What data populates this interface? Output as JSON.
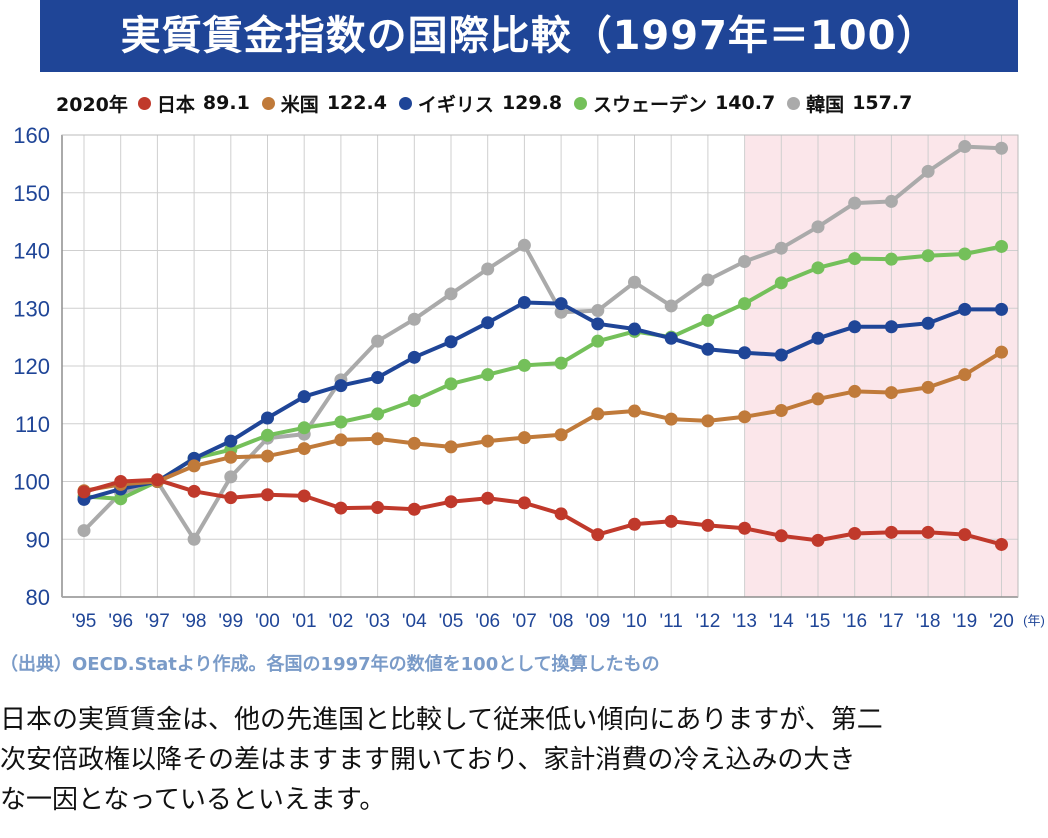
{
  "title": "実質賃金指数の国際比較（1997年＝100）",
  "legend": {
    "year": "2020年",
    "items": [
      {
        "name": "日本",
        "value": "89.1",
        "color": "#c0392b"
      },
      {
        "name": "米国",
        "value": "122.4",
        "color": "#c07a3a"
      },
      {
        "name": "イギリス",
        "value": "129.8",
        "color": "#1f4597"
      },
      {
        "name": "スウェーデン",
        "value": "140.7",
        "color": "#74c05a"
      },
      {
        "name": "韓国",
        "value": "157.7",
        "color": "#aaaaaa"
      }
    ]
  },
  "source": "（出典）OECD.Statより作成。各国の1997年の数値を100として換算したもの",
  "comment": [
    "日本の実質賃金は、他の先進国と比較して従来低い傾向にありますが、第二",
    "次安倍政権以降その差はますます開いており、家計消費の冷え込みの大き",
    "な一因となっているといえます。"
  ],
  "chart_data": {
    "type": "line",
    "title": "実質賃金指数の国際比較（1997年＝100）",
    "x_unit": "(年)",
    "categories": [
      "'95",
      "'96",
      "'97",
      "'98",
      "'99",
      "'00",
      "'01",
      "'02",
      "'03",
      "'04",
      "'05",
      "'06",
      "'07",
      "'08",
      "'09",
      "'10",
      "'11",
      "'12",
      "'13",
      "'14",
      "'15",
      "'16",
      "'17",
      "'18",
      "'19",
      "'20"
    ],
    "ylim": [
      80,
      160
    ],
    "yticks": [
      80,
      90,
      100,
      110,
      120,
      130,
      140,
      150,
      160
    ],
    "highlight_range": [
      "'13",
      "'20"
    ],
    "highlight_color": "#fbe6ea",
    "series": [
      {
        "name": "韓国",
        "color": "#aaaaaa",
        "values": [
          91.5,
          98.0,
          100.0,
          90.0,
          100.8,
          107.5,
          108.2,
          117.6,
          124.3,
          128.1,
          132.5,
          136.8,
          140.9,
          129.3,
          129.6,
          134.5,
          130.4,
          134.9,
          138.1,
          140.4,
          144.1,
          148.2,
          148.5,
          153.7,
          158.0,
          157.7
        ]
      },
      {
        "name": "スウェーデン",
        "color": "#74c05a",
        "values": [
          97.4,
          97.0,
          100.0,
          104.0,
          105.5,
          108.0,
          109.3,
          110.3,
          111.7,
          114.0,
          116.9,
          118.5,
          120.1,
          120.5,
          124.3,
          126.0,
          125.0,
          127.9,
          130.8,
          134.4,
          137.0,
          138.6,
          138.5,
          139.1,
          139.4,
          140.7
        ]
      },
      {
        "name": "イギリス",
        "color": "#1f4597",
        "values": [
          96.9,
          98.7,
          100.0,
          104.0,
          107.0,
          111.0,
          114.7,
          116.6,
          118.0,
          121.5,
          124.2,
          127.5,
          131.0,
          130.8,
          127.3,
          126.4,
          124.8,
          122.9,
          122.3,
          121.9,
          124.8,
          126.8,
          126.8,
          127.4,
          129.8,
          129.8
        ]
      },
      {
        "name": "米国",
        "color": "#c07a3a",
        "values": [
          98.4,
          99.5,
          100.0,
          102.7,
          104.2,
          104.4,
          105.7,
          107.2,
          107.4,
          106.6,
          106.0,
          107.0,
          107.6,
          108.1,
          111.7,
          112.2,
          110.8,
          110.5,
          111.2,
          112.3,
          114.3,
          115.6,
          115.4,
          116.3,
          118.5,
          122.4
        ]
      },
      {
        "name": "日本",
        "color": "#c0392b",
        "values": [
          98.2,
          100.0,
          100.3,
          98.3,
          97.2,
          97.7,
          97.5,
          95.4,
          95.5,
          95.2,
          96.5,
          97.1,
          96.3,
          94.4,
          90.8,
          92.6,
          93.1,
          92.4,
          91.9,
          90.6,
          89.8,
          91.0,
          91.2,
          91.2,
          90.8,
          89.1
        ]
      }
    ]
  }
}
